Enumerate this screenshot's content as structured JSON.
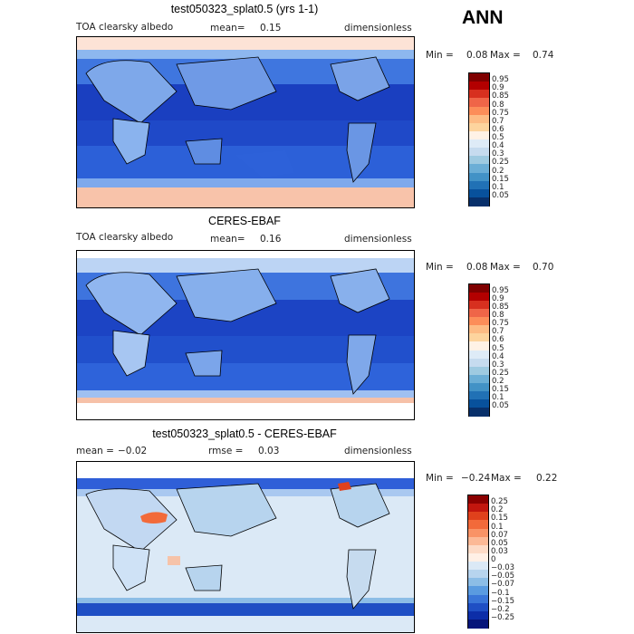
{
  "season": "ANN",
  "chart_data": [
    {
      "type": "heatmap",
      "title": "test050323_splat0.5 (yrs 1-1)",
      "variable": "TOA clearsky albedo",
      "mean_label": "mean=",
      "mean": "0.15",
      "units": "dimensionless",
      "min_label": "Min =",
      "min": "0.08",
      "max_label": "Max =",
      "max": "0.74",
      "colorbar_levels": [
        "0.95",
        "0.9",
        "0.85",
        "0.8",
        "0.75",
        "0.7",
        "0.6",
        "0.5",
        "0.4",
        "0.3",
        "0.25",
        "0.2",
        "0.15",
        "0.1",
        "0.05"
      ],
      "colorbar_colors": [
        "#7f0000",
        "#b30000",
        "#d7301f",
        "#ef6548",
        "#fc8d59",
        "#fdbb84",
        "#fdd49e",
        "#fff2e6",
        "#deebf7",
        "#c6dbef",
        "#9ecae1",
        "#6baed6",
        "#4292c6",
        "#2171b5",
        "#08519c",
        "#08306b"
      ]
    },
    {
      "type": "heatmap",
      "title": "CERES-EBAF",
      "variable": "TOA clearsky albedo",
      "mean_label": "mean=",
      "mean": "0.16",
      "units": "dimensionless",
      "min_label": "Min =",
      "min": "0.08",
      "max_label": "Max =",
      "max": "0.70",
      "colorbar_levels": [
        "0.95",
        "0.9",
        "0.85",
        "0.8",
        "0.75",
        "0.7",
        "0.6",
        "0.5",
        "0.4",
        "0.3",
        "0.25",
        "0.2",
        "0.15",
        "0.1",
        "0.05"
      ],
      "colorbar_colors": [
        "#7f0000",
        "#b30000",
        "#d7301f",
        "#ef6548",
        "#fc8d59",
        "#fdbb84",
        "#fdd49e",
        "#fff2e6",
        "#deebf7",
        "#c6dbef",
        "#9ecae1",
        "#6baed6",
        "#4292c6",
        "#2171b5",
        "#08519c",
        "#08306b"
      ]
    },
    {
      "type": "heatmap",
      "title": "test050323_splat0.5 - CERES-EBAF",
      "mean_label": "mean =",
      "mean": "−0.02",
      "rmse_label": "rmse =",
      "rmse": "0.03",
      "units": "dimensionless",
      "min_label": "Min =",
      "min": "−0.24",
      "max_label": "Max =",
      "max": "0.22",
      "colorbar_levels": [
        "0.25",
        "0.2",
        "0.15",
        "0.1",
        "0.07",
        "0.05",
        "0.03",
        "0",
        "−0.03",
        "−0.05",
        "−0.07",
        "−0.1",
        "−0.15",
        "−0.2",
        "−0.25"
      ],
      "colorbar_colors": [
        "#8b0000",
        "#c2160e",
        "#e0411c",
        "#f26a3a",
        "#f99366",
        "#fcb996",
        "#fddbc7",
        "#fff0e6",
        "#dbe9f6",
        "#b7d4ee",
        "#8cbde6",
        "#5a9be0",
        "#3a76d8",
        "#1f4fc4",
        "#0d2ea8",
        "#06157a"
      ]
    }
  ]
}
